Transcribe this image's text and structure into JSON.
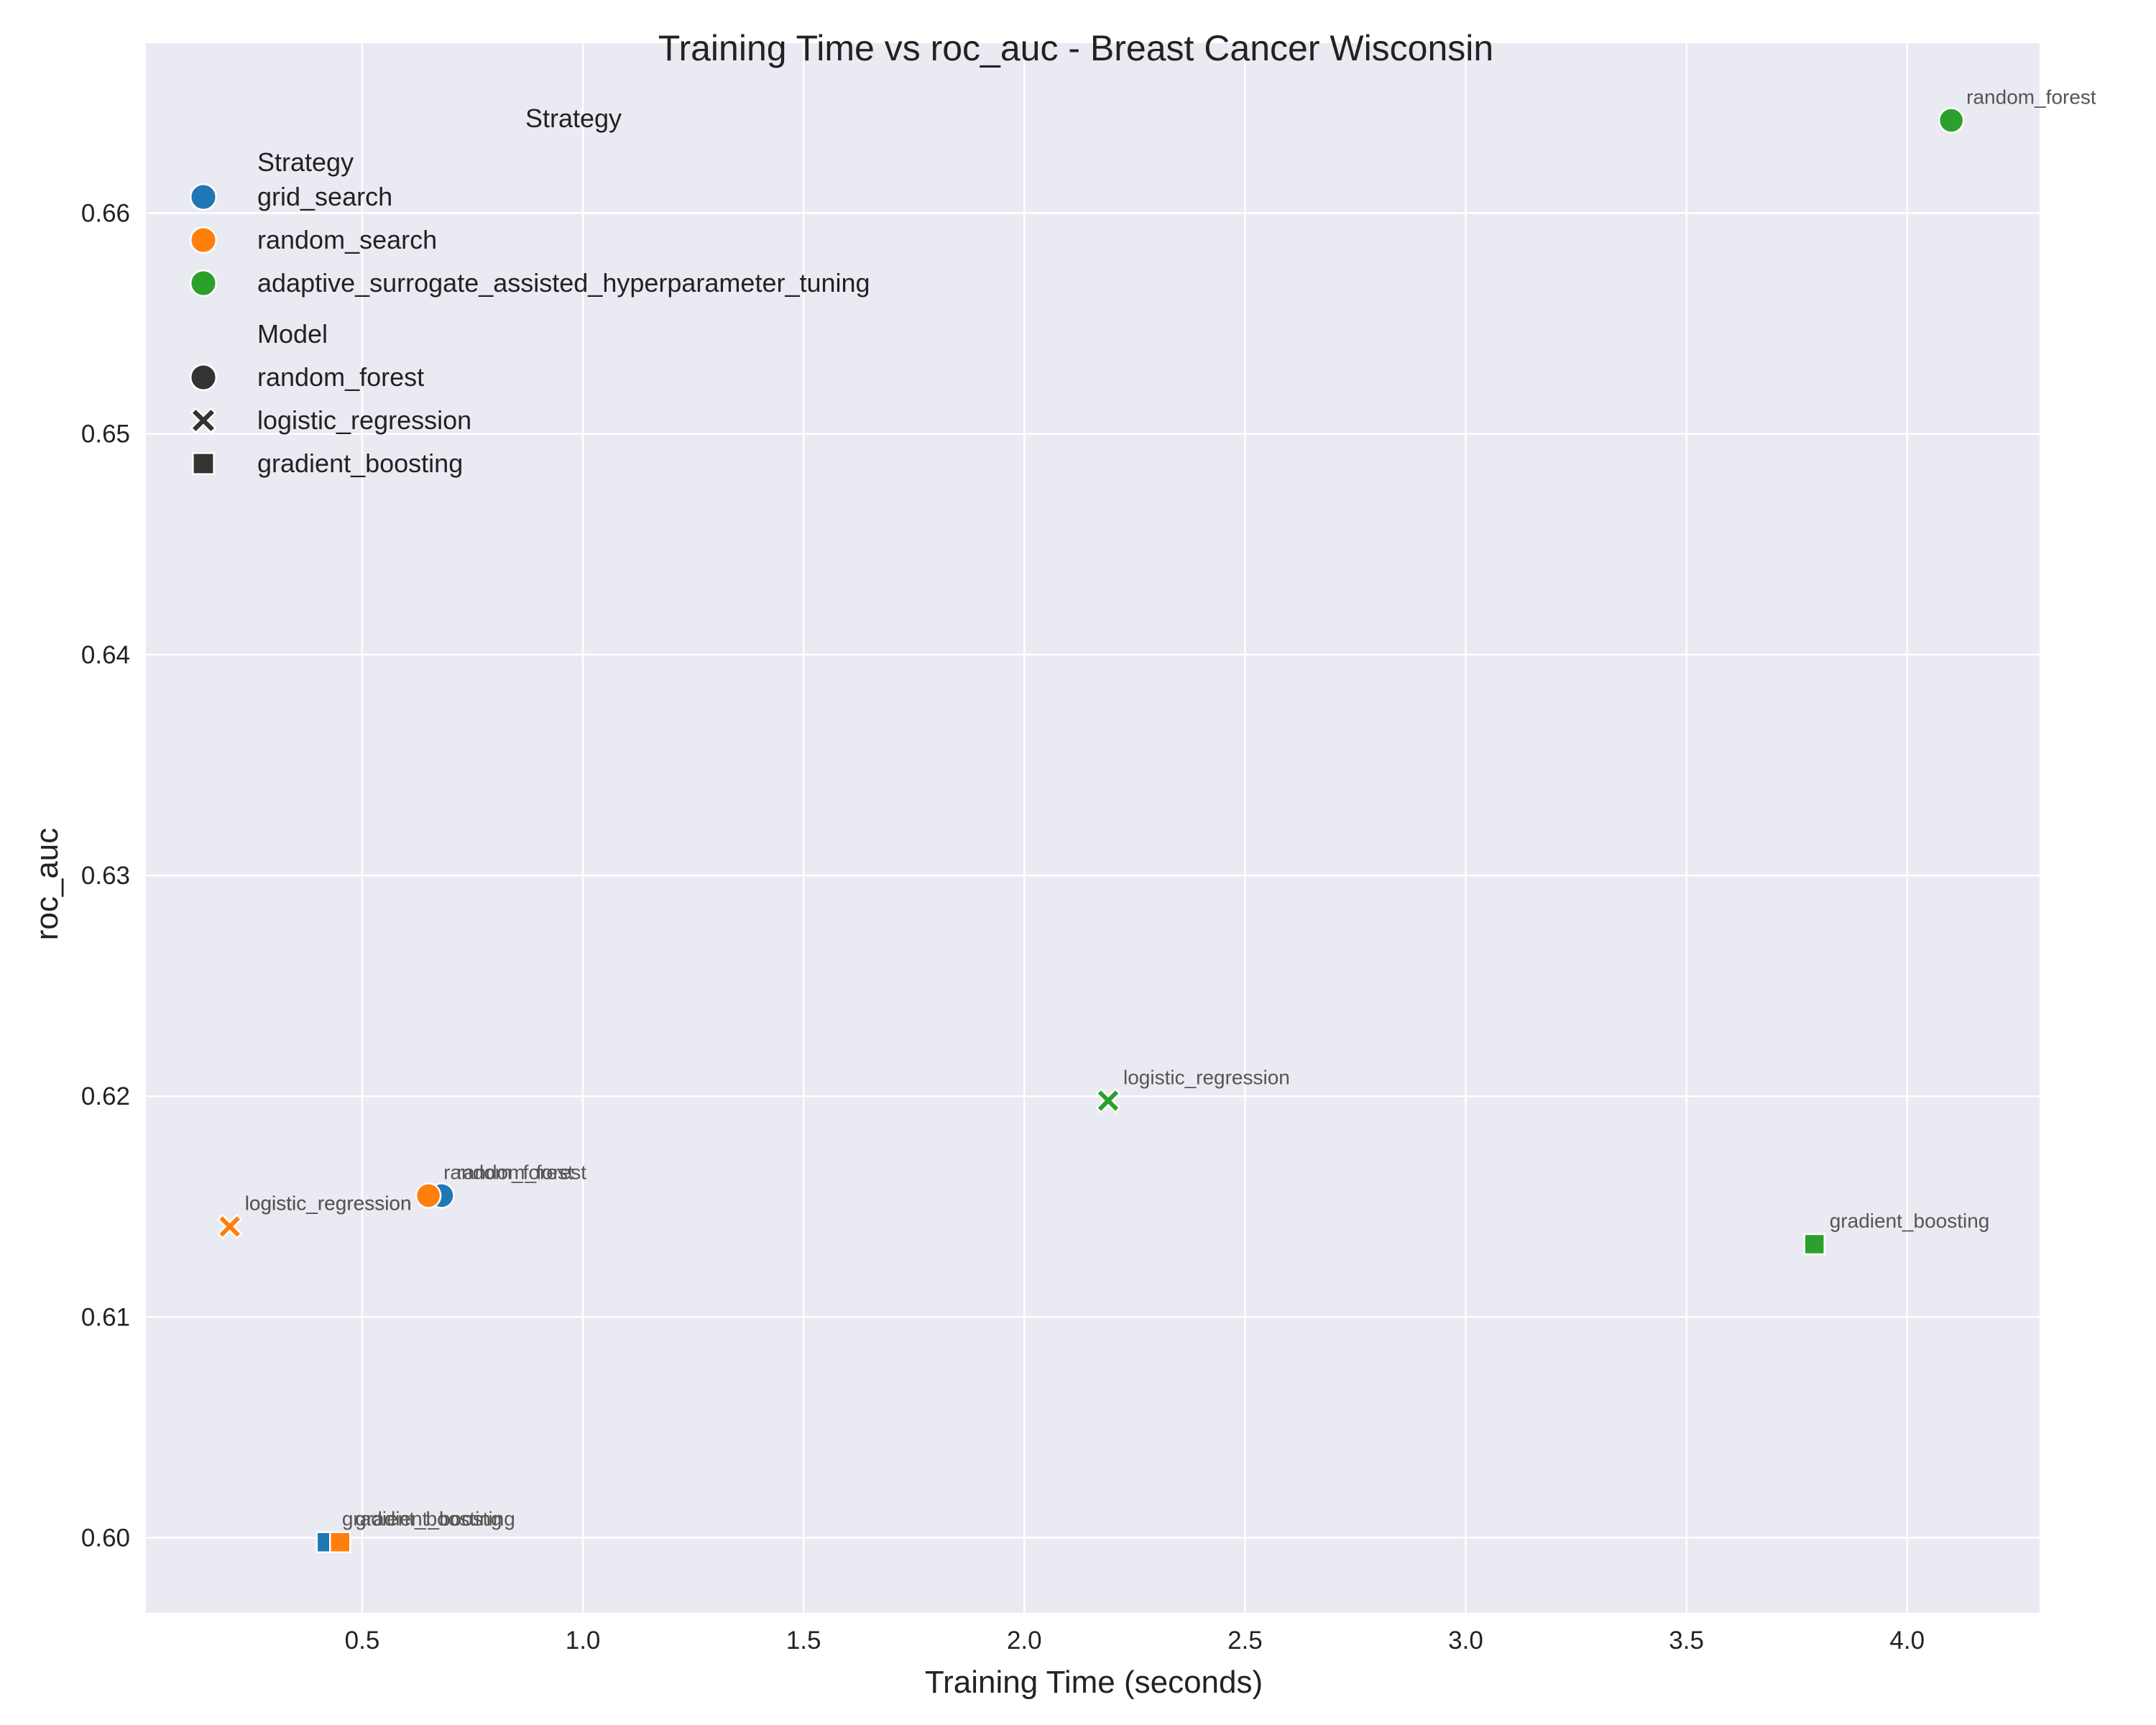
{
  "chart_data": {
    "type": "scatter",
    "title": "Training Time vs roc_auc - Breast Cancer Wisconsin",
    "xlabel": "Training Time (seconds)",
    "ylabel": "roc_auc",
    "xlim": [
      0.01,
      4.3
    ],
    "ylim": [
      0.5966,
      0.6677
    ],
    "xticks": [
      0.5,
      1.0,
      1.5,
      2.0,
      2.5,
      3.0,
      3.5,
      4.0
    ],
    "xtick_labels": [
      "0.5",
      "1.0",
      "1.5",
      "2.0",
      "2.5",
      "3.0",
      "3.5",
      "4.0"
    ],
    "yticks": [
      0.6,
      0.61,
      0.62,
      0.63,
      0.64,
      0.65,
      0.66
    ],
    "ytick_labels": [
      "0.60",
      "0.61",
      "0.62",
      "0.63",
      "0.64",
      "0.65",
      "0.66"
    ],
    "grid": true,
    "legend_placement": "top-left",
    "strategy_colors": {
      "grid_search": "#1f77b4",
      "random_search": "#ff7f0e",
      "adaptive_surrogate_assisted_hyperparameter_tuning": "#2ca02c"
    },
    "model_markers": {
      "random_forest": "circle",
      "logistic_regression": "x",
      "gradient_boosting": "square"
    },
    "points": [
      {
        "strategy": "grid_search",
        "model": "random_forest",
        "x": 0.68,
        "y": 0.6155
      },
      {
        "strategy": "grid_search",
        "model": "logistic_regression",
        "x": 0.2,
        "y": 0.6141
      },
      {
        "strategy": "grid_search",
        "model": "gradient_boosting",
        "x": 0.42,
        "y": 0.5998
      },
      {
        "strategy": "random_search",
        "model": "random_forest",
        "x": 0.65,
        "y": 0.6155
      },
      {
        "strategy": "random_search",
        "model": "logistic_regression",
        "x": 0.2,
        "y": 0.6141
      },
      {
        "strategy": "random_search",
        "model": "gradient_boosting",
        "x": 0.45,
        "y": 0.5998
      },
      {
        "strategy": "adaptive_surrogate_assisted_hyperparameter_tuning",
        "model": "random_forest",
        "x": 4.1,
        "y": 0.6642
      },
      {
        "strategy": "adaptive_surrogate_assisted_hyperparameter_tuning",
        "model": "logistic_regression",
        "x": 2.19,
        "y": 0.6198
      },
      {
        "strategy": "adaptive_surrogate_assisted_hyperparameter_tuning",
        "model": "gradient_boosting",
        "x": 3.79,
        "y": 0.6133
      }
    ],
    "legend": {
      "title": "Strategy",
      "strategy_header": "Strategy",
      "strategy_entries": [
        "grid_search",
        "random_search",
        "adaptive_surrogate_assisted_hyperparameter_tuning"
      ],
      "model_header": "Model",
      "model_entries": [
        "random_forest",
        "logistic_regression",
        "gradient_boosting"
      ],
      "marker_color": "#333333"
    },
    "colors": {
      "plot_background": "#eaeaf2",
      "grid": "#ffffff",
      "annotation": "#555555"
    }
  }
}
